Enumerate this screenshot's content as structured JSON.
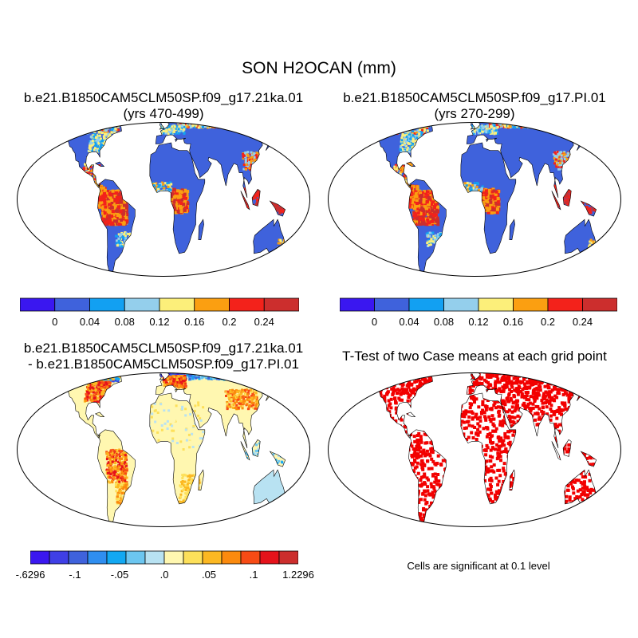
{
  "figure": {
    "title": "SON H2OCAN (mm)"
  },
  "panels": [
    {
      "id": "case1",
      "title_line1": "b.e21.B1850CAM5CLM50SP.f09_g17.21ka.01",
      "title_line2": "(yrs 470-499)",
      "style": "mean"
    },
    {
      "id": "case2",
      "title_line1": "b.e21.B1850CAM5CLM50SP.f09_g17.PI.01",
      "title_line2": "(yrs 270-299)",
      "style": "mean"
    },
    {
      "id": "diff",
      "title_line1": "b.e21.B1850CAM5CLM50SP.f09_g17.21ka.01",
      "title_line2": "- b.e21.B1850CAM5CLM50SP.f09_g17.PI.01",
      "style": "diff"
    },
    {
      "id": "ttest",
      "title_line1": "T-Test of two Case means at each grid point",
      "title_line2": "",
      "style": "ttest"
    }
  ],
  "colorbars": {
    "mean": {
      "colors": [
        "#3a17f0",
        "#3f62dc",
        "#12a0f2",
        "#94cfec",
        "#fcef7a",
        "#fb9f11",
        "#f3221b",
        "#cc2e2d"
      ],
      "labels": [
        "0",
        "0.04",
        "0.08",
        "0.12",
        "0.16",
        "0.2",
        "0.24"
      ]
    },
    "diff": {
      "colors": [
        "#3a17f0",
        "#3f3fe6",
        "#3f62dc",
        "#2f8ef0",
        "#12a8f2",
        "#6cc6f0",
        "#b8e2f2",
        "#fff7b0",
        "#fde05a",
        "#fcb822",
        "#fb8a0e",
        "#f74b15",
        "#e5121b",
        "#cc2e2d"
      ],
      "labels": [
        "-.6296",
        "-.1",
        "-.05",
        ".0",
        ".05",
        ".1",
        "1.2296"
      ]
    }
  },
  "significance_note": "Cells are significant at 0.1 level",
  "map_colors": {
    "ocean": "#ffffff",
    "coast": "#000000",
    "sig": "#f20000"
  }
}
